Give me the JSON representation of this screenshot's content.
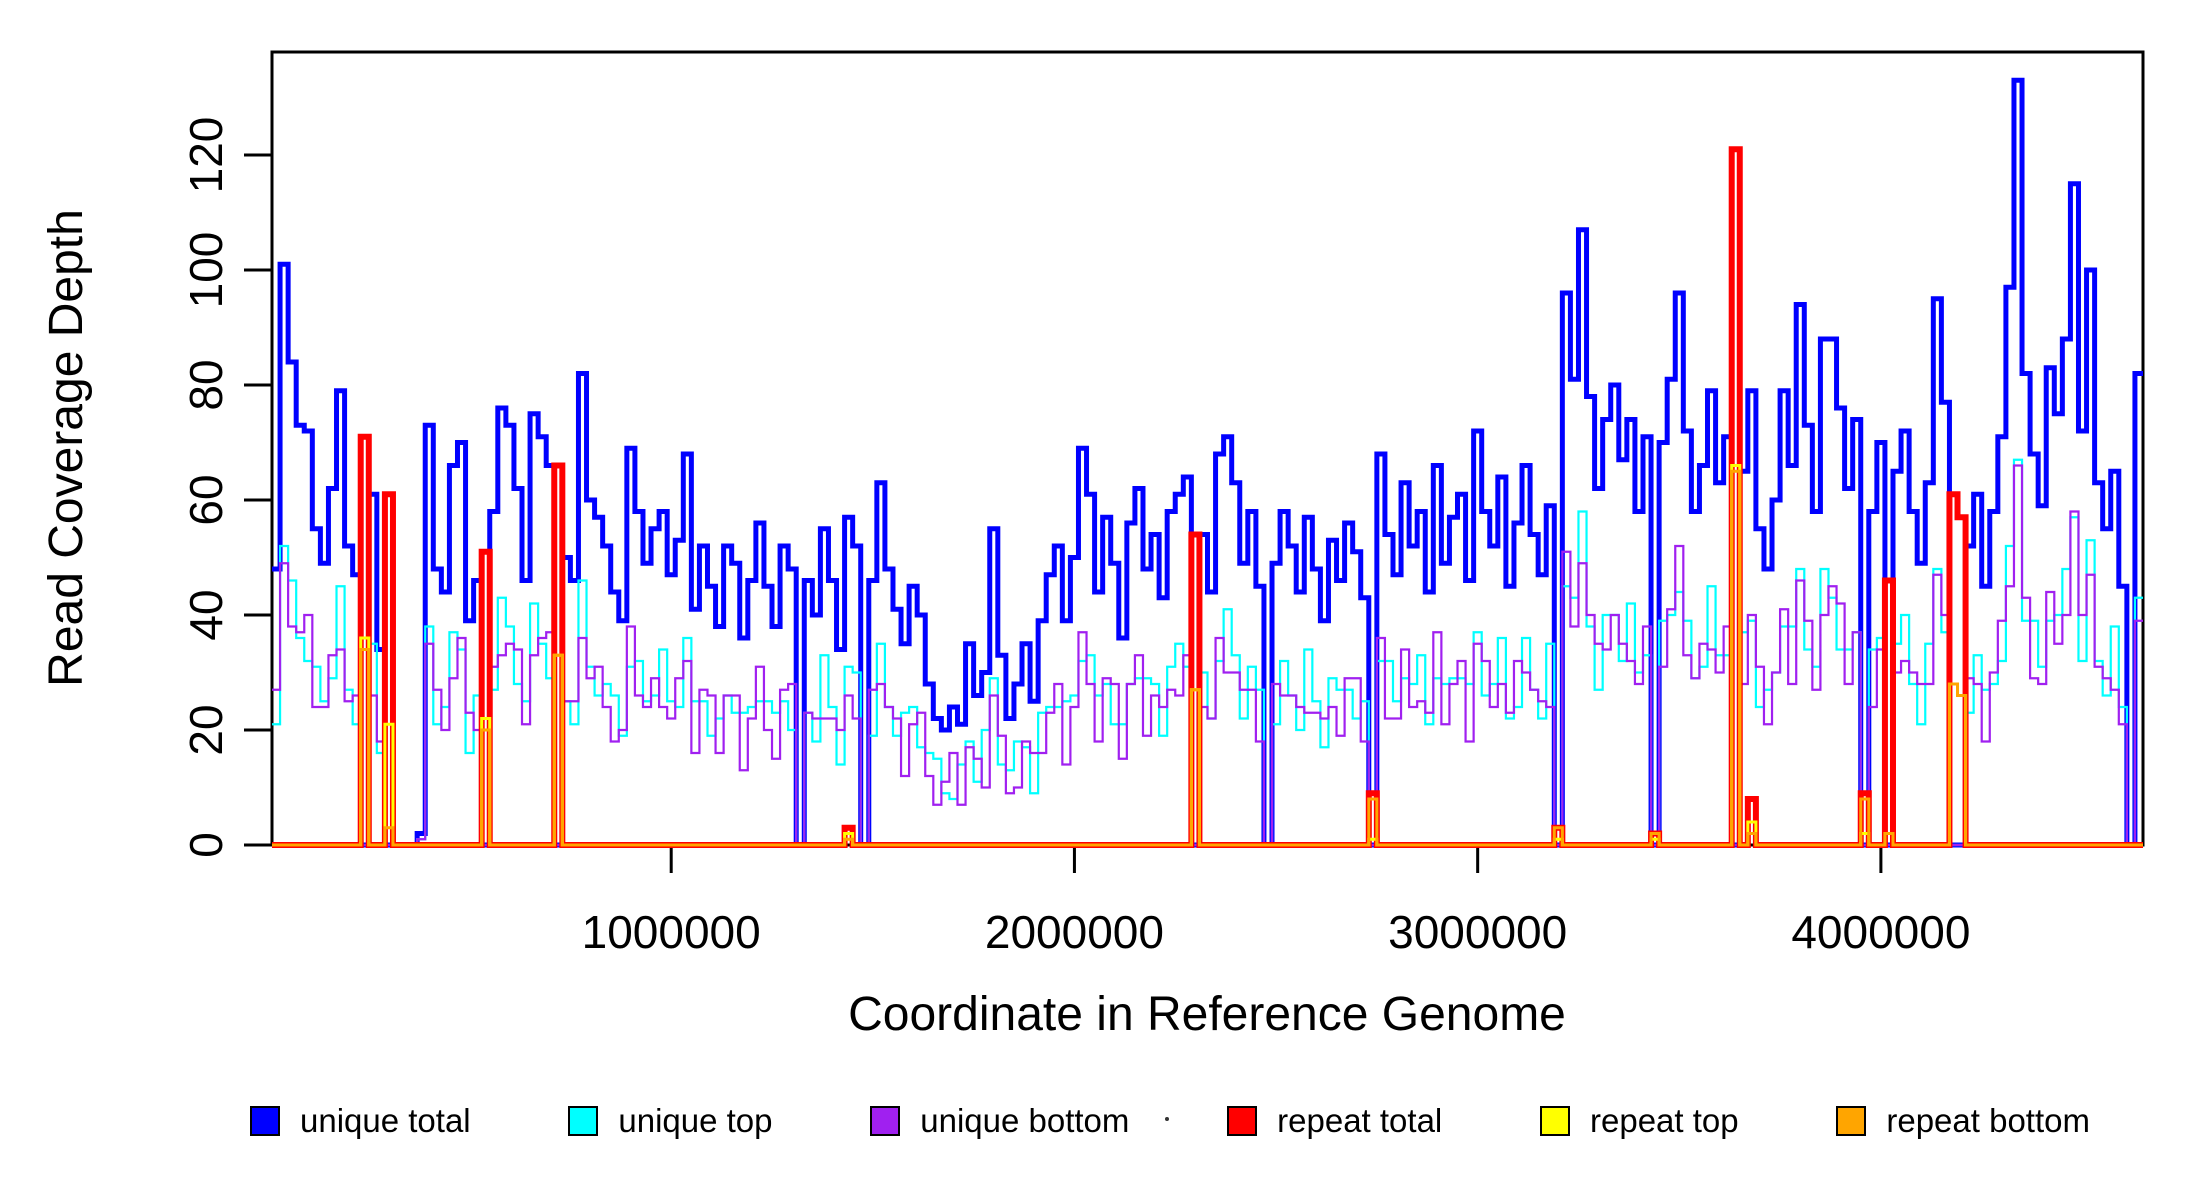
{
  "figure": {
    "background": "#FFFFFF",
    "accent_black": "#000000"
  },
  "axes": {
    "y_label": "Read Coverage Depth",
    "x_label": "Coordinate in Reference Genome",
    "y_ticks": [
      0,
      20,
      40,
      60,
      80,
      100,
      120
    ],
    "x_ticks": [
      1000000,
      2000000,
      3000000,
      4000000
    ],
    "x_tick_labels": [
      "1000000",
      "2000000",
      "3000000",
      "4000000"
    ],
    "y_range": [
      0,
      137
    ],
    "x_range": [
      10000,
      4650000
    ]
  },
  "legend": [
    {
      "label": "unique total",
      "color": "#0000FF"
    },
    {
      "label": "unique top",
      "color": "#00FFFF"
    },
    {
      "label": "unique bottom",
      "color": "#A020F0"
    },
    {
      "label": "repeat total",
      "color": "#FF0000"
    },
    {
      "label": "repeat top",
      "color": "#FFFF00"
    },
    {
      "label": "repeat bottom",
      "color": "#FFA500"
    }
  ],
  "chart_data": {
    "type": "line",
    "step": true,
    "grid": false,
    "title": "",
    "xlabel": "Coordinate in Reference Genome",
    "ylabel": "Read Coverage Depth",
    "bin_start": 10000,
    "bin_size": 20000,
    "x_range": [
      10000,
      4650000
    ],
    "ylim": [
      0,
      137
    ],
    "series": [
      {
        "name": "unique total",
        "color": "#0000FF",
        "lw": 5,
        "values": [
          48,
          101,
          84,
          73,
          72,
          55,
          49,
          62,
          79,
          52,
          47,
          0,
          61,
          34,
          0,
          0,
          0,
          0,
          2,
          73,
          48,
          44,
          66,
          70,
          39,
          46,
          0,
          58,
          76,
          73,
          62,
          46,
          75,
          71,
          66,
          0,
          50,
          46,
          82,
          60,
          57,
          52,
          44,
          39,
          69,
          58,
          49,
          55,
          58,
          47,
          53,
          68,
          41,
          52,
          45,
          38,
          52,
          49,
          36,
          46,
          56,
          45,
          38,
          52,
          48,
          0,
          46,
          40,
          55,
          46,
          34,
          57,
          52,
          0,
          46,
          63,
          48,
          41,
          35,
          45,
          40,
          28,
          22,
          20,
          24,
          21,
          35,
          26,
          30,
          55,
          33,
          22,
          28,
          35,
          25,
          39,
          47,
          52,
          39,
          50,
          69,
          61,
          44,
          57,
          49,
          36,
          56,
          62,
          48,
          54,
          43,
          58,
          61,
          64,
          0,
          54,
          44,
          68,
          71,
          63,
          49,
          58,
          45,
          0,
          49,
          58,
          52,
          44,
          57,
          48,
          39,
          53,
          46,
          56,
          51,
          43,
          0,
          68,
          54,
          47,
          63,
          52,
          58,
          44,
          66,
          49,
          57,
          61,
          46,
          72,
          58,
          52,
          64,
          45,
          56,
          66,
          54,
          47,
          59,
          0,
          96,
          81,
          107,
          78,
          62,
          74,
          80,
          67,
          74,
          58,
          71,
          0,
          70,
          81,
          96,
          72,
          58,
          66,
          79,
          63,
          71,
          0,
          65,
          79,
          55,
          48,
          60,
          79,
          66,
          94,
          73,
          58,
          88,
          88,
          76,
          62,
          74,
          0,
          58,
          70,
          0,
          65,
          72,
          58,
          49,
          63,
          95,
          77,
          0,
          0,
          52,
          61,
          45,
          58,
          71,
          97,
          133,
          82,
          68,
          59,
          83,
          75,
          88,
          115,
          72,
          100,
          63,
          55,
          65,
          45,
          0,
          82
        ]
      },
      {
        "name": "unique top",
        "color": "#00FFFF",
        "lw": 2.2,
        "values": [
          21,
          52,
          46,
          36,
          32,
          31,
          25,
          29,
          45,
          27,
          21,
          0,
          35,
          16,
          0,
          0,
          0,
          0,
          1,
          38,
          21,
          24,
          37,
          34,
          16,
          26,
          0,
          27,
          43,
          38,
          28,
          25,
          42,
          35,
          29,
          0,
          25,
          21,
          46,
          31,
          26,
          28,
          26,
          19,
          31,
          32,
          25,
          26,
          34,
          25,
          24,
          36,
          25,
          25,
          19,
          22,
          26,
          23,
          23,
          24,
          25,
          25,
          23,
          25,
          20,
          0,
          23,
          18,
          33,
          24,
          14,
          31,
          30,
          0,
          19,
          35,
          24,
          19,
          23,
          24,
          17,
          16,
          15,
          9,
          8,
          14,
          18,
          11,
          20,
          29,
          14,
          13,
          18,
          17,
          9,
          23,
          24,
          24,
          25,
          26,
          32,
          33,
          26,
          28,
          21,
          21,
          28,
          29,
          29,
          28,
          19,
          31,
          35,
          31,
          0,
          30,
          22,
          32,
          41,
          33,
          22,
          31,
          27,
          0,
          21,
          32,
          26,
          20,
          34,
          25,
          17,
          29,
          27,
          27,
          22,
          25,
          0,
          32,
          32,
          25,
          29,
          28,
          33,
          21,
          29,
          28,
          29,
          29,
          28,
          37,
          26,
          28,
          36,
          22,
          24,
          36,
          27,
          22,
          35,
          0,
          45,
          43,
          58,
          38,
          27,
          40,
          40,
          32,
          42,
          30,
          33,
          0,
          39,
          40,
          44,
          39,
          29,
          31,
          45,
          33,
          33,
          0,
          37,
          39,
          24,
          27,
          30,
          38,
          38,
          48,
          34,
          31,
          48,
          43,
          34,
          34,
          37,
          0,
          34,
          36,
          0,
          35,
          40,
          28,
          21,
          35,
          48,
          37,
          0,
          0,
          23,
          33,
          27,
          28,
          32,
          52,
          67,
          39,
          39,
          31,
          39,
          40,
          48,
          57,
          32,
          53,
          32,
          26,
          38,
          24,
          0,
          43
        ]
      },
      {
        "name": "unique bottom",
        "color": "#A020F0",
        "lw": 2.2,
        "values": [
          27,
          49,
          38,
          37,
          40,
          24,
          24,
          33,
          34,
          25,
          26,
          0,
          26,
          18,
          0,
          0,
          0,
          0,
          1,
          35,
          27,
          20,
          29,
          36,
          23,
          20,
          0,
          31,
          33,
          35,
          34,
          21,
          33,
          36,
          37,
          0,
          25,
          25,
          36,
          29,
          31,
          24,
          18,
          20,
          38,
          26,
          24,
          29,
          24,
          22,
          29,
          32,
          16,
          27,
          26,
          16,
          26,
          26,
          13,
          22,
          31,
          20,
          15,
          27,
          28,
          0,
          23,
          22,
          22,
          22,
          20,
          26,
          22,
          0,
          27,
          28,
          24,
          22,
          12,
          21,
          23,
          12,
          7,
          11,
          16,
          7,
          17,
          15,
          10,
          26,
          19,
          9,
          10,
          18,
          16,
          16,
          23,
          28,
          14,
          24,
          37,
          28,
          18,
          29,
          28,
          15,
          28,
          33,
          19,
          26,
          24,
          27,
          26,
          33,
          0,
          24,
          22,
          36,
          30,
          30,
          27,
          27,
          18,
          0,
          28,
          26,
          26,
          24,
          23,
          23,
          22,
          24,
          19,
          29,
          29,
          18,
          0,
          36,
          22,
          22,
          34,
          24,
          25,
          23,
          37,
          21,
          28,
          32,
          18,
          35,
          32,
          24,
          28,
          23,
          32,
          30,
          27,
          25,
          24,
          0,
          51,
          38,
          49,
          40,
          35,
          34,
          40,
          35,
          32,
          28,
          38,
          0,
          31,
          41,
          52,
          33,
          29,
          35,
          34,
          30,
          38,
          0,
          28,
          40,
          31,
          21,
          30,
          41,
          28,
          46,
          39,
          27,
          40,
          45,
          42,
          28,
          37,
          0,
          24,
          34,
          0,
          30,
          32,
          30,
          28,
          28,
          47,
          40,
          0,
          0,
          29,
          28,
          18,
          30,
          39,
          45,
          66,
          43,
          29,
          28,
          44,
          35,
          40,
          58,
          40,
          47,
          31,
          29,
          27,
          21,
          0,
          39
        ]
      },
      {
        "name": "repeat total",
        "color": "#FF0000",
        "lw": 6,
        "sparse": {
          "11": 71,
          "14": 61,
          "26": 51,
          "35": 66,
          "71": 3,
          "114": 54,
          "136": 9,
          "159": 3,
          "171": 2,
          "181": 121,
          "183": 8,
          "197": 9,
          "200": 46,
          "208": 61,
          "209": 57
        }
      },
      {
        "name": "repeat top",
        "color": "#FFFF00",
        "lw": 3,
        "sparse": {
          "11": 36,
          "14": 21,
          "26": 22,
          "35": 33,
          "71": 2,
          "114": 27,
          "136": 1,
          "159": 1,
          "171": 1,
          "181": 66,
          "183": 4,
          "197": 2,
          "200": 2,
          "208": 28,
          "209": 26
        }
      },
      {
        "name": "repeat bottom",
        "color": "#FFA500",
        "lw": 3,
        "sparse": {
          "11": 34,
          "14": 3,
          "26": 20,
          "35": 33,
          "71": 1,
          "114": 27,
          "136": 8,
          "159": 3,
          "171": 2,
          "181": 65,
          "183": 2,
          "197": 8,
          "200": 2,
          "208": 28,
          "209": 26
        }
      }
    ]
  }
}
